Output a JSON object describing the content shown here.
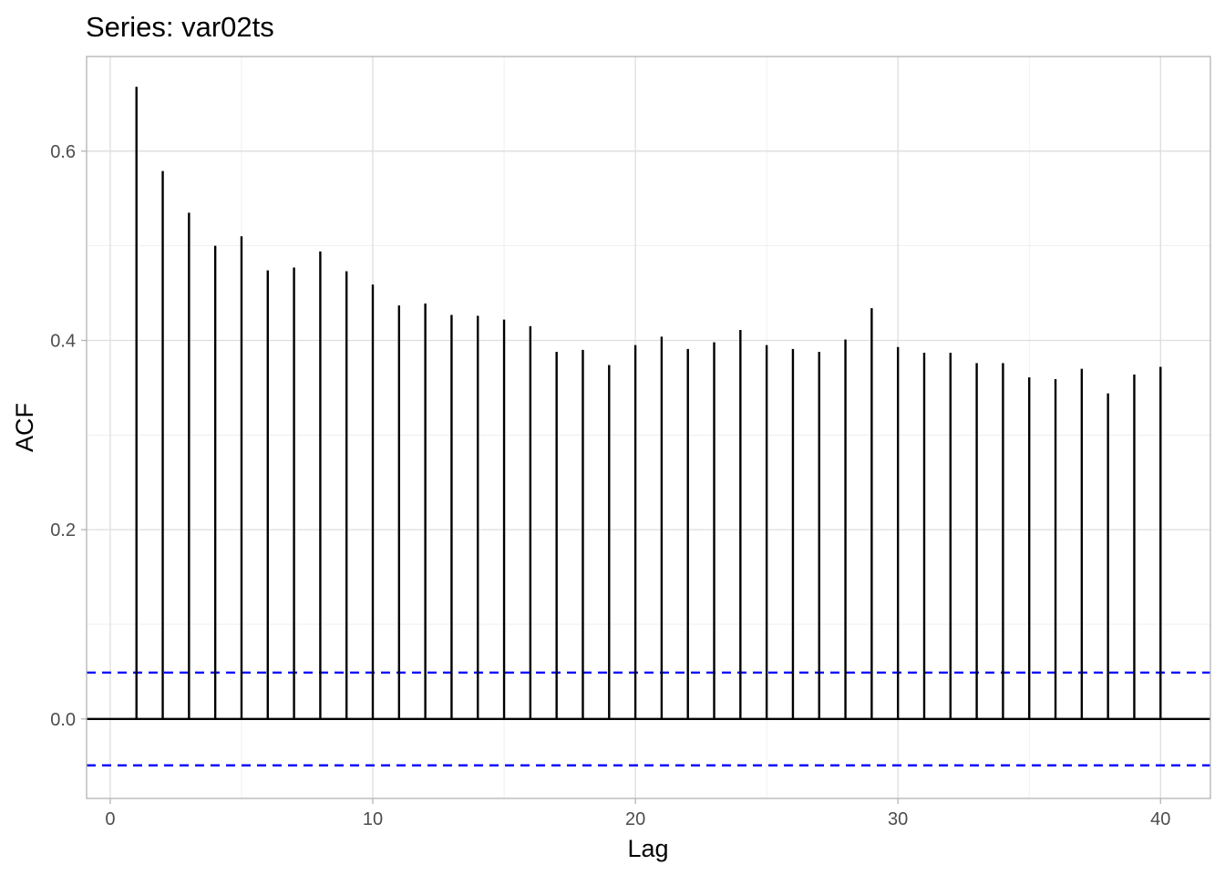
{
  "chart_data": {
    "type": "bar",
    "subtype": "acf-spike",
    "title": "Series: var02ts",
    "xlabel": "Lag",
    "ylabel": "ACF",
    "xlim": [
      -0.9,
      41.9
    ],
    "ylim": [
      -0.084,
      0.7
    ],
    "xticks": [
      0,
      10,
      20,
      30,
      40
    ],
    "xtick_labels": [
      "0",
      "10",
      "20",
      "30",
      "40"
    ],
    "yticks": [
      0.0,
      0.2,
      0.4,
      0.6
    ],
    "ytick_labels": [
      "0.0",
      "0.2",
      "0.4",
      "0.6"
    ],
    "grid": true,
    "x": [
      1,
      2,
      3,
      4,
      5,
      6,
      7,
      8,
      9,
      10,
      11,
      12,
      13,
      14,
      15,
      16,
      17,
      18,
      19,
      20,
      21,
      22,
      23,
      24,
      25,
      26,
      27,
      28,
      29,
      30,
      31,
      32,
      33,
      34,
      35,
      36,
      37,
      38,
      39,
      40
    ],
    "values": [
      0.668,
      0.579,
      0.535,
      0.5,
      0.51,
      0.474,
      0.477,
      0.494,
      0.473,
      0.459,
      0.437,
      0.439,
      0.427,
      0.426,
      0.422,
      0.415,
      0.388,
      0.39,
      0.374,
      0.395,
      0.404,
      0.391,
      0.398,
      0.411,
      0.395,
      0.391,
      0.388,
      0.401,
      0.434,
      0.393,
      0.387,
      0.387,
      0.376,
      0.376,
      0.361,
      0.359,
      0.37,
      0.344,
      0.364,
      0.372
    ],
    "zero_line": 0,
    "confidence_bounds": [
      0.049,
      -0.049
    ],
    "colors": {
      "spikes": "#000000",
      "confidence": "#0000ff",
      "grid": "#dedede",
      "panel_border": "#b3b3b3"
    }
  }
}
